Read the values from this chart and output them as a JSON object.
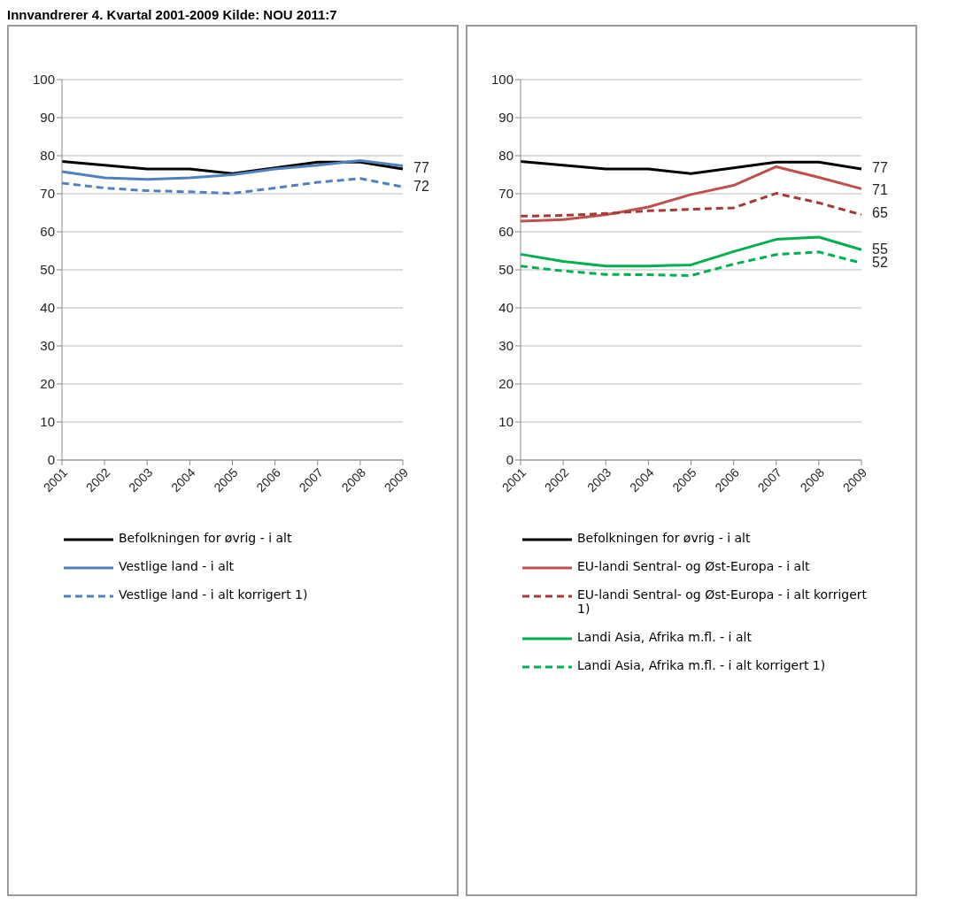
{
  "chart_data": [
    {
      "type": "line",
      "title": "Innvandrerer 4. Kvartal 2001-2009 Kilde: NOU 2011:7",
      "categories": [
        "2001",
        "2002",
        "2003",
        "2004",
        "2005",
        "2006",
        "2007",
        "2008",
        "2009"
      ],
      "ylim": [
        0,
        100
      ],
      "yticks": [
        0,
        10,
        20,
        30,
        40,
        50,
        60,
        70,
        80,
        90,
        100
      ],
      "grid": "y",
      "legend": "bottom",
      "series": [
        {
          "name": "Befolkningen for øvrig - i alt",
          "color": "#000000",
          "line_style": "solid",
          "values": [
            78.5,
            77.5,
            76.5,
            76.5,
            75.3,
            76.8,
            78.3,
            78.3,
            76.5
          ]
        },
        {
          "name": "Vestlige land - i alt",
          "color": "#4f81bd",
          "line_style": "solid",
          "values": [
            75.8,
            74.2,
            73.8,
            74.2,
            75,
            76.5,
            77.5,
            78.7,
            77.3
          ]
        },
        {
          "name": "Vestlige land - i alt korrigert 1)",
          "color": "#4f81bd",
          "line_style": "dashed",
          "values": [
            72.8,
            71.5,
            70.8,
            70.5,
            70.1,
            71.5,
            73,
            74,
            71.8
          ]
        }
      ],
      "annotations": [
        {
          "text": "77",
          "x": "2009",
          "y": 77
        },
        {
          "text": "72",
          "x": "2009",
          "y": 72
        }
      ]
    },
    {
      "type": "line",
      "categories": [
        "2001",
        "2002",
        "2003",
        "2004",
        "2005",
        "2006",
        "2007",
        "2008",
        "2009"
      ],
      "ylim": [
        0,
        100
      ],
      "yticks": [
        0,
        10,
        20,
        30,
        40,
        50,
        60,
        70,
        80,
        90,
        100
      ],
      "grid": "y",
      "legend": "bottom",
      "series": [
        {
          "name": "Befolkningen for øvrig - i alt",
          "color": "#000000",
          "line_style": "solid",
          "values": [
            78.5,
            77.5,
            76.5,
            76.5,
            75.3,
            76.8,
            78.3,
            78.3,
            76.5
          ]
        },
        {
          "name": "EU-landi Sentral- og Øst-Europa - i alt",
          "color": "#c0504d",
          "line_style": "solid",
          "values": [
            62.8,
            63.2,
            64.5,
            66.5,
            69.8,
            72.2,
            77.1,
            74.3,
            71.3
          ]
        },
        {
          "name": "EU-landi Sentral- og Øst-Europa -  i alt korrigert 1)",
          "color": "#a23b38",
          "line_style": "dashed",
          "values": [
            64.1,
            64.3,
            64.8,
            65.5,
            65.9,
            66.3,
            70.1,
            67.6,
            64.5
          ]
        },
        {
          "name": "Landi Asia, Afrika m.fl. - i alt",
          "color": "#00b050",
          "line_style": "solid",
          "values": [
            54.1,
            52.2,
            51,
            51,
            51.3,
            54.8,
            58,
            58.6,
            55.3
          ]
        },
        {
          "name": "Landi Asia, Afrika m.fl. -  i alt korrigert 1)",
          "color": "#00b050",
          "line_style": "dashed",
          "values": [
            51,
            49.7,
            48.8,
            48.7,
            48.5,
            51.5,
            54,
            54.7,
            51.8
          ]
        }
      ],
      "annotations": [
        {
          "text": "77",
          "x": "2009",
          "y": 77
        },
        {
          "text": "71",
          "x": "2009",
          "y": 71
        },
        {
          "text": "65",
          "x": "2009",
          "y": 65
        },
        {
          "text": "55",
          "x": "2009",
          "y": 55.5
        },
        {
          "text": "52",
          "x": "2009",
          "y": 52
        }
      ]
    }
  ]
}
